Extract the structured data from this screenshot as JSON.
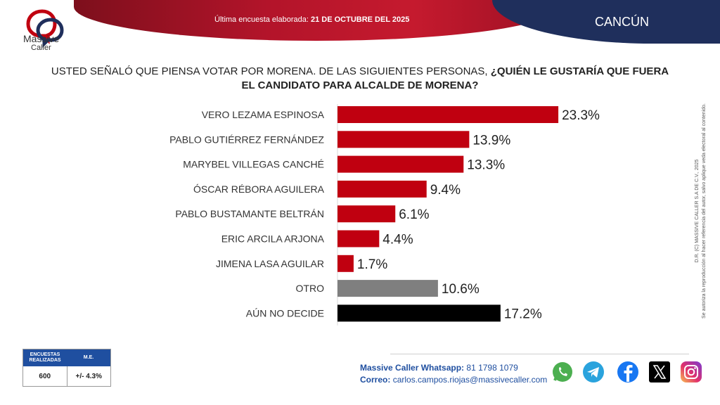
{
  "header": {
    "date_prefix": "Última encuesta elaborada:",
    "date_value": "21 DE OCTUBRE DEL 2025",
    "city": "CANCÚN"
  },
  "logo": {
    "line1": "Massive",
    "line2": "Caller"
  },
  "question": {
    "normal": "USTED SEÑALÓ QUE PIENSA VOTAR POR MORENA. DE LAS SIGUIENTES PERSONAS,",
    "bold_line1": "¿QUIÉN LE GUSTARÍA QUE FUERA",
    "bold_line2": "EL CANDIDATO PARA ALCALDE DE MORENA?"
  },
  "chart_data": {
    "type": "bar",
    "orientation": "horizontal",
    "title": "USTED SEÑALÓ QUE PIENSA VOTAR POR MORENA. DE LAS SIGUIENTES PERSONAS, ¿QUIÉN LE GUSTARÍA QUE FUERA EL CANDIDATO PARA ALCALDE DE MORENA?",
    "categories": [
      "VERO LEZAMA ESPINOSA",
      "PABLO GUTIÉRREZ FERNÁNDEZ",
      "MARYBEL VILLEGAS CANCHÉ",
      "ÓSCAR RÉBORA AGUILERA",
      "PABLO BUSTAMANTE BELTRÁN",
      "ERIC ARCILA ARJONA",
      "JIMENA LASA AGUILAR",
      "OTRO",
      "AÚN NO DECIDE"
    ],
    "values": [
      23.3,
      13.9,
      13.3,
      9.4,
      6.1,
      4.4,
      1.7,
      10.6,
      17.2
    ],
    "labels": [
      "23.3%",
      "13.9%",
      "13.3%",
      "9.4%",
      "6.1%",
      "4.4%",
      "1.7%",
      "10.6%",
      "17.2%"
    ],
    "bar_colors": [
      "#c00010",
      "#c00010",
      "#c00010",
      "#c00010",
      "#c00010",
      "#c00010",
      "#c00010",
      "#7f7f7f",
      "#000000"
    ],
    "xlim": [
      0,
      25
    ],
    "xlabel": "",
    "ylabel": "",
    "grid": false
  },
  "side_note": {
    "line1": "D.R. (C) MASSIVE CALLER S.A DE C.V., 2025",
    "line2": "Se autoriza la reproducción al hacer referencia del autor, salvo aplique veda electoral al contenido."
  },
  "stats": {
    "col1_header": "ENCUESTAS REALIZADAS",
    "col2_header": "M.E.",
    "col1_value": "600",
    "col2_value": "+/- 4.3%"
  },
  "contact": {
    "whatsapp_label": "Massive Caller Whatsapp:",
    "whatsapp_value": "81 1798 1079",
    "email_label": "Correo:",
    "email_value": "carlos.campos.riojas@massivecaller.com"
  },
  "social_icons": [
    "whatsapp-icon",
    "telegram-icon",
    "facebook-icon",
    "x-icon",
    "instagram-icon"
  ],
  "colors": {
    "brand_red": "#c00010",
    "brand_navy": "#1f2f5c",
    "contact_blue": "#1f4fa0"
  }
}
